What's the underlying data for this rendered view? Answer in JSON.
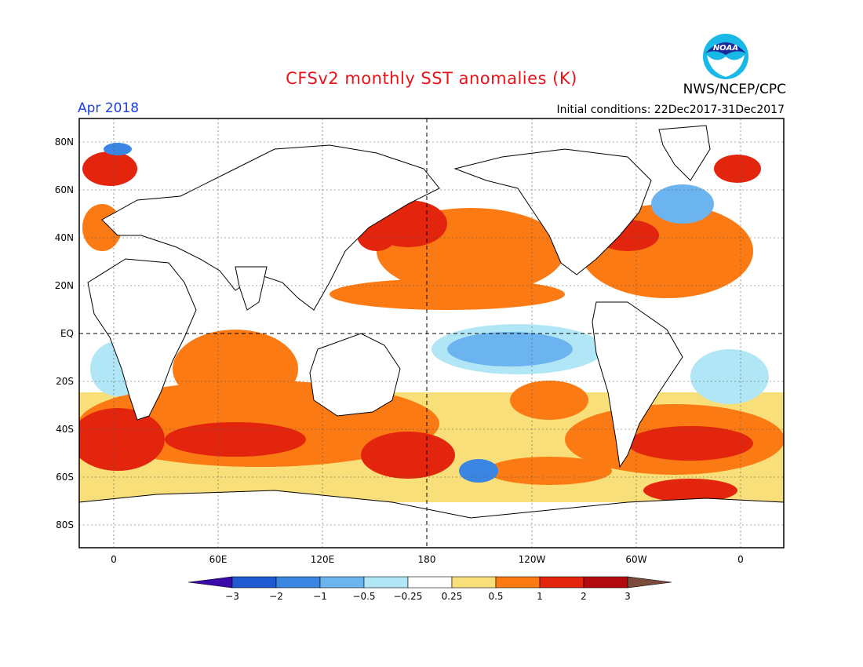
{
  "title": "CFSv2 monthly SST anomalies (K)",
  "subtitle_left": "Apr 2018",
  "subtitle_right": "Initial conditions: 22Dec2017-31Dec2017",
  "agency": "NWS/NCEP/CPC",
  "logo_text": "NOAA",
  "lat_labels": [
    "80N",
    "60N",
    "40N",
    "20N",
    "EQ",
    "20S",
    "40S",
    "60S",
    "80S"
  ],
  "lon_labels": [
    "0",
    "60E",
    "120E",
    "180",
    "120W",
    "60W",
    "0"
  ],
  "colorbar": {
    "labels": [
      "-3",
      "-2",
      "-1",
      "-0.5",
      "-0.25",
      "0.25",
      "0.5",
      "1",
      "2",
      "3"
    ],
    "colors": [
      "#3a0aa8",
      "#1f5ad1",
      "#3b86e3",
      "#6cb4f0",
      "#b0e6f5",
      "#ffffff",
      "#f9df7a",
      "#fb7a13",
      "#e2250c",
      "#b1090d",
      "#7b4a3a"
    ]
  }
}
